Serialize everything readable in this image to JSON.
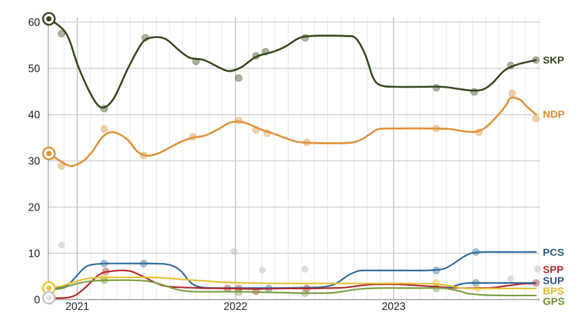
{
  "chart_data": {
    "type": "line",
    "description": "Opinion polling trend lines with poll scatter points and previous-election ring markers",
    "x_axis": {
      "tick_labels": [
        "2021",
        "2022",
        "2023"
      ],
      "ticks": [
        2021,
        2022,
        2023
      ],
      "range": [
        2020.8,
        2023.97
      ],
      "minor_grid": "monthly",
      "grid": true
    },
    "y_axis": {
      "tick_labels": [
        "0",
        "10",
        "20",
        "30",
        "40",
        "50",
        "60"
      ],
      "ticks": [
        0,
        10,
        20,
        30,
        40,
        50,
        60
      ],
      "range": [
        0,
        62
      ],
      "grid": true
    },
    "legend_position": "right-edge-labels",
    "series": [
      {
        "id": "skp",
        "label": "SKP",
        "color": "#36471d",
        "label_color": "#36471d",
        "line_width": 2.7,
        "label_value": 51.8,
        "election_value": 60.7,
        "line": [
          [
            2020.82,
            60.7
          ],
          [
            2020.93,
            57.5
          ],
          [
            2021.01,
            50.0
          ],
          [
            2021.1,
            43.5
          ],
          [
            2021.16,
            41.5
          ],
          [
            2021.23,
            43.5
          ],
          [
            2021.32,
            50.0
          ],
          [
            2021.41,
            55.5
          ],
          [
            2021.48,
            56.7
          ],
          [
            2021.56,
            56.3
          ],
          [
            2021.64,
            54.0
          ],
          [
            2021.71,
            52.3
          ],
          [
            2021.8,
            51.8
          ],
          [
            2021.89,
            50.3
          ],
          [
            2021.96,
            49.4
          ],
          [
            2022.04,
            50.3
          ],
          [
            2022.13,
            52.5
          ],
          [
            2022.24,
            53.6
          ],
          [
            2022.32,
            54.8
          ],
          [
            2022.4,
            56.5
          ],
          [
            2022.48,
            57.0
          ],
          [
            2022.69,
            57.0
          ],
          [
            2022.76,
            56.5
          ],
          [
            2022.82,
            53.0
          ],
          [
            2022.87,
            48.0
          ],
          [
            2022.92,
            46.3
          ],
          [
            2023.02,
            46.0
          ],
          [
            2023.17,
            46.0
          ],
          [
            2023.31,
            46.0
          ],
          [
            2023.42,
            45.5
          ],
          [
            2023.5,
            45.2
          ],
          [
            2023.57,
            45.5
          ],
          [
            2023.63,
            47.0
          ],
          [
            2023.7,
            49.5
          ],
          [
            2023.78,
            50.8
          ],
          [
            2023.9,
            51.8
          ]
        ],
        "points": [
          [
            2020.9,
            57.5
          ],
          [
            2021.17,
            41.3
          ],
          [
            2021.43,
            56.6
          ],
          [
            2021.75,
            51.5
          ],
          [
            2022.02,
            47.9
          ],
          [
            2022.13,
            52.7
          ],
          [
            2022.19,
            53.6
          ],
          [
            2022.44,
            56.6
          ],
          [
            2023.27,
            45.8
          ],
          [
            2023.51,
            44.9
          ],
          [
            2023.74,
            50.6
          ],
          [
            2023.9,
            51.8
          ]
        ]
      },
      {
        "id": "ndp",
        "label": "NDP",
        "color": "#de9036",
        "label_color": "#d98c2f",
        "line_width": 2.7,
        "label_value": 40.1,
        "election_value": 31.6,
        "line": [
          [
            2020.82,
            31.6
          ],
          [
            2020.9,
            29.8
          ],
          [
            2020.96,
            28.9
          ],
          [
            2021.03,
            29.8
          ],
          [
            2021.09,
            31.8
          ],
          [
            2021.15,
            34.8
          ],
          [
            2021.2,
            36.1
          ],
          [
            2021.25,
            36.0
          ],
          [
            2021.32,
            34.5
          ],
          [
            2021.38,
            32.0
          ],
          [
            2021.44,
            31.1
          ],
          [
            2021.51,
            31.6
          ],
          [
            2021.58,
            32.8
          ],
          [
            2021.66,
            34.2
          ],
          [
            2021.73,
            35.0
          ],
          [
            2021.81,
            35.5
          ],
          [
            2021.89,
            36.8
          ],
          [
            2021.96,
            38.2
          ],
          [
            2022.02,
            38.5
          ],
          [
            2022.08,
            38.0
          ],
          [
            2022.16,
            36.8
          ],
          [
            2022.24,
            35.9
          ],
          [
            2022.31,
            35.0
          ],
          [
            2022.38,
            34.2
          ],
          [
            2022.46,
            33.9
          ],
          [
            2022.59,
            33.8
          ],
          [
            2022.72,
            33.9
          ],
          [
            2022.79,
            34.5
          ],
          [
            2022.86,
            36.0
          ],
          [
            2022.91,
            36.9
          ],
          [
            2023.04,
            37.0
          ],
          [
            2023.22,
            37.0
          ],
          [
            2023.35,
            36.9
          ],
          [
            2023.44,
            36.4
          ],
          [
            2023.52,
            36.3
          ],
          [
            2023.58,
            37.2
          ],
          [
            2023.65,
            39.5
          ],
          [
            2023.71,
            42.0
          ],
          [
            2023.74,
            43.6
          ],
          [
            2023.8,
            43.2
          ],
          [
            2023.84,
            41.8
          ],
          [
            2023.9,
            40.0
          ]
        ],
        "points": [
          [
            2020.9,
            28.9
          ],
          [
            2021.17,
            36.9
          ],
          [
            2021.42,
            31.2
          ],
          [
            2021.73,
            35.2
          ],
          [
            2022.02,
            38.7
          ],
          [
            2022.13,
            36.7
          ],
          [
            2022.2,
            36.0
          ],
          [
            2022.45,
            34.0
          ],
          [
            2023.27,
            37.0
          ],
          [
            2023.54,
            36.2
          ],
          [
            2023.75,
            44.6
          ],
          [
            2023.9,
            39.1
          ]
        ]
      },
      {
        "id": "pcs",
        "label": "PCS",
        "color": "#2f6c9c",
        "label_color": "#27597c",
        "line_width": 2.3,
        "label_value": 10.2,
        "election_value": null,
        "line": [
          [
            2020.82,
            2.3
          ],
          [
            2020.9,
            2.7
          ],
          [
            2020.95,
            3.5
          ],
          [
            2021.0,
            5.3
          ],
          [
            2021.05,
            7.0
          ],
          [
            2021.1,
            7.6
          ],
          [
            2021.19,
            7.8
          ],
          [
            2021.32,
            7.8
          ],
          [
            2021.45,
            7.8
          ],
          [
            2021.55,
            7.7
          ],
          [
            2021.61,
            7.2
          ],
          [
            2021.66,
            6.0
          ],
          [
            2021.7,
            4.3
          ],
          [
            2021.74,
            3.1
          ],
          [
            2021.8,
            2.6
          ],
          [
            2021.91,
            2.5
          ],
          [
            2022.08,
            2.5
          ],
          [
            2022.26,
            2.5
          ],
          [
            2022.43,
            2.6
          ],
          [
            2022.54,
            2.7
          ],
          [
            2022.61,
            3.1
          ],
          [
            2022.66,
            4.0
          ],
          [
            2022.71,
            5.2
          ],
          [
            2022.76,
            6.0
          ],
          [
            2022.8,
            6.3
          ],
          [
            2022.91,
            6.3
          ],
          [
            2023.06,
            6.3
          ],
          [
            2023.2,
            6.3
          ],
          [
            2023.31,
            6.6
          ],
          [
            2023.37,
            7.6
          ],
          [
            2023.44,
            9.2
          ],
          [
            2023.49,
            10.0
          ],
          [
            2023.57,
            10.3
          ],
          [
            2023.7,
            10.3
          ],
          [
            2023.9,
            10.3
          ]
        ],
        "points": [
          [
            2021.17,
            7.8
          ],
          [
            2021.42,
            7.8
          ],
          [
            2022.21,
            2.4
          ],
          [
            2023.27,
            6.3
          ],
          [
            2023.52,
            10.3
          ]
        ]
      },
      {
        "id": "spp",
        "label": "SPP",
        "color": "#b22a2e",
        "label_color": "#b22a2e",
        "line_width": 2.3,
        "label_value": 6.5,
        "election_value": null,
        "line": [
          [
            2020.85,
            0.3
          ],
          [
            2020.93,
            0.4
          ],
          [
            2020.98,
            0.8
          ],
          [
            2021.03,
            2.0
          ],
          [
            2021.09,
            3.9
          ],
          [
            2021.13,
            5.2
          ],
          [
            2021.17,
            5.9
          ],
          [
            2021.23,
            6.2
          ],
          [
            2021.29,
            6.3
          ],
          [
            2021.34,
            6.1
          ],
          [
            2021.39,
            5.4
          ],
          [
            2021.45,
            4.4
          ],
          [
            2021.51,
            3.4
          ],
          [
            2021.56,
            2.9
          ],
          [
            2021.62,
            2.7
          ],
          [
            2021.69,
            2.6
          ],
          [
            2021.78,
            2.5
          ],
          [
            2021.95,
            2.4
          ],
          [
            2022.13,
            2.3
          ],
          [
            2022.3,
            2.4
          ],
          [
            2022.48,
            2.4
          ],
          [
            2022.61,
            2.5
          ],
          [
            2022.69,
            2.6
          ],
          [
            2022.76,
            2.9
          ],
          [
            2022.83,
            3.2
          ],
          [
            2022.9,
            3.3
          ],
          [
            2022.99,
            3.3
          ],
          [
            2023.09,
            3.2
          ],
          [
            2023.17,
            3.0
          ],
          [
            2023.26,
            2.8
          ],
          [
            2023.35,
            2.6
          ],
          [
            2023.44,
            2.5
          ],
          [
            2023.55,
            2.5
          ],
          [
            2023.63,
            2.6
          ],
          [
            2023.72,
            3.0
          ],
          [
            2023.81,
            3.4
          ],
          [
            2023.9,
            3.5
          ]
        ],
        "points": [
          [
            2021.18,
            6.1
          ],
          [
            2021.95,
            2.4
          ],
          [
            2022.02,
            2.4
          ],
          [
            2022.13,
            1.8
          ],
          [
            2022.45,
            2.4
          ],
          [
            2023.9,
            3.6
          ]
        ]
      },
      {
        "id": "sup",
        "label": "SUP",
        "color": "#2d6794",
        "label_color": "#31517e",
        "line_width": 2.3,
        "label_value": 4.1,
        "election_value": null,
        "line": [
          [
            2023.33,
            2.4
          ],
          [
            2023.38,
            2.9
          ],
          [
            2023.43,
            3.4
          ],
          [
            2023.48,
            3.6
          ],
          [
            2023.57,
            3.6
          ],
          [
            2023.7,
            3.6
          ],
          [
            2023.8,
            3.6
          ],
          [
            2023.9,
            3.6
          ]
        ],
        "points": [
          [
            2023.52,
            3.6
          ]
        ]
      },
      {
        "id": "bps",
        "label": "BPS",
        "color": "#e5c136",
        "label_color": "#dfbb27",
        "line_width": 2.3,
        "label_value": 1.9,
        "election_value": 2.5,
        "line": [
          [
            2020.82,
            2.6
          ],
          [
            2020.9,
            2.9
          ],
          [
            2020.95,
            3.5
          ],
          [
            2021.03,
            4.3
          ],
          [
            2021.1,
            4.7
          ],
          [
            2021.21,
            4.8
          ],
          [
            2021.34,
            4.8
          ],
          [
            2021.47,
            4.8
          ],
          [
            2021.58,
            4.6
          ],
          [
            2021.69,
            4.3
          ],
          [
            2021.82,
            4.0
          ],
          [
            2021.95,
            3.7
          ],
          [
            2022.08,
            3.6
          ],
          [
            2022.26,
            3.5
          ],
          [
            2022.48,
            3.5
          ],
          [
            2022.69,
            3.5
          ],
          [
            2022.91,
            3.5
          ],
          [
            2023.13,
            3.5
          ],
          [
            2023.26,
            3.4
          ],
          [
            2023.35,
            3.0
          ],
          [
            2023.41,
            2.6
          ],
          [
            2023.48,
            2.4
          ],
          [
            2023.65,
            2.4
          ],
          [
            2023.8,
            2.4
          ],
          [
            2023.9,
            2.4
          ]
        ],
        "points": [
          [
            2021.17,
            4.8
          ],
          [
            2023.27,
            3.6
          ],
          [
            2023.53,
            2.4
          ]
        ]
      },
      {
        "id": "gps",
        "label": "GPS",
        "color": "#7d9c40",
        "label_color": "#708e2e",
        "line_width": 2.3,
        "label_value": -0.4,
        "election_value": null,
        "line": [
          [
            2020.82,
            2.1
          ],
          [
            2020.9,
            2.4
          ],
          [
            2020.95,
            3.0
          ],
          [
            2021.03,
            3.7
          ],
          [
            2021.12,
            4.1
          ],
          [
            2021.23,
            4.2
          ],
          [
            2021.34,
            4.2
          ],
          [
            2021.44,
            4.0
          ],
          [
            2021.52,
            3.4
          ],
          [
            2021.58,
            2.7
          ],
          [
            2021.64,
            2.1
          ],
          [
            2021.7,
            1.8
          ],
          [
            2021.78,
            1.7
          ],
          [
            2021.91,
            1.7
          ],
          [
            2022.04,
            1.7
          ],
          [
            2022.17,
            1.6
          ],
          [
            2022.3,
            1.5
          ],
          [
            2022.43,
            1.4
          ],
          [
            2022.56,
            1.4
          ],
          [
            2022.65,
            1.6
          ],
          [
            2022.74,
            2.1
          ],
          [
            2022.83,
            2.4
          ],
          [
            2022.91,
            2.5
          ],
          [
            2023.04,
            2.5
          ],
          [
            2023.17,
            2.5
          ],
          [
            2023.3,
            2.5
          ],
          [
            2023.35,
            2.3
          ],
          [
            2023.42,
            1.8
          ],
          [
            2023.47,
            1.3
          ],
          [
            2023.57,
            1.0
          ],
          [
            2023.7,
            0.9
          ],
          [
            2023.83,
            0.9
          ],
          [
            2023.9,
            0.9
          ]
        ],
        "points": [
          [
            2021.17,
            4.2
          ],
          [
            2022.02,
            1.6
          ],
          [
            2022.44,
            1.4
          ],
          [
            2023.27,
            2.4
          ]
        ]
      }
    ],
    "other_points": {
      "id": "other",
      "color": "#c3c3c3",
      "points": [
        [
          2020.9,
          11.8
        ],
        [
          2021.99,
          10.4
        ],
        [
          2022.17,
          6.4
        ],
        [
          2022.44,
          6.6
        ],
        [
          2023.74,
          4.5
        ],
        [
          2023.91,
          6.6
        ]
      ]
    },
    "election_markers": [
      {
        "series": "skp",
        "x": 2020.82,
        "value": 60.7,
        "color": "#36471d"
      },
      {
        "series": "ndp",
        "x": 2020.82,
        "value": 31.6,
        "color": "#de9036"
      },
      {
        "series": "bps",
        "x": 2020.82,
        "value": 2.5,
        "color": "#e8c531"
      },
      {
        "series": "other",
        "x": 2020.82,
        "value": 0.4,
        "color": "#c4c4c4"
      }
    ],
    "colors": {
      "grid_major_h": "#c9c9c9",
      "grid_minor_v": "#e7e7e7",
      "grid_year_v": "#b8b8b8",
      "axis_line": "#9e9e9e",
      "background": "#ffffff"
    }
  }
}
